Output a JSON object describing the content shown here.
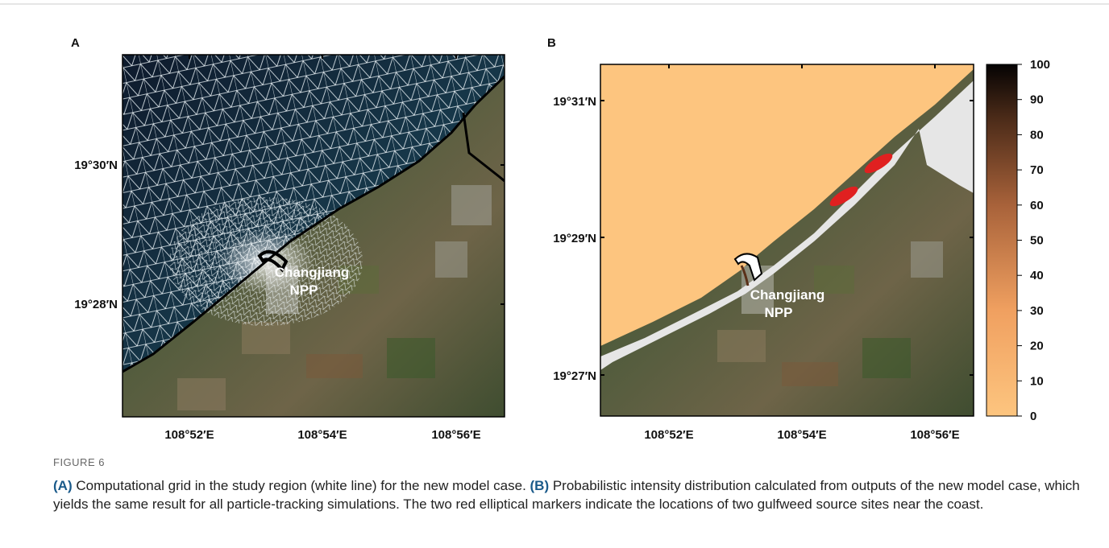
{
  "figure": {
    "panels": [
      {
        "label": "A",
        "lat_labels": [
          "19°30′N",
          "19°28′N"
        ],
        "lon_labels": [
          "108°52′E",
          "108°54′E",
          "108°56′E"
        ],
        "site_label": [
          "Changjiang",
          "NPP"
        ]
      },
      {
        "label": "B",
        "lat_labels": [
          "19°31′N",
          "19°29′N",
          "19°27′N"
        ],
        "lon_labels": [
          "108°52′E",
          "108°54′E",
          "108°56′E"
        ],
        "site_label": [
          "Changjiang",
          "NPP"
        ],
        "colorbar": {
          "range": [
            0,
            100
          ],
          "ticks": [
            0,
            10,
            20,
            30,
            40,
            50,
            60,
            70,
            80,
            90,
            100
          ]
        }
      }
    ],
    "caption": {
      "label": "FIGURE 6",
      "parts": [
        {
          "tag": "(A)",
          "text": " Computational grid in the study region (white line) for the new model case. "
        },
        {
          "tag": "(B)",
          "text": " Probabilistic intensity distribution calculated from outputs of the new model case, which yields the same result for all particle-tracking simulations. The two red elliptical markers indicate the locations of two gulfweed source sites near the coast."
        }
      ]
    }
  }
}
